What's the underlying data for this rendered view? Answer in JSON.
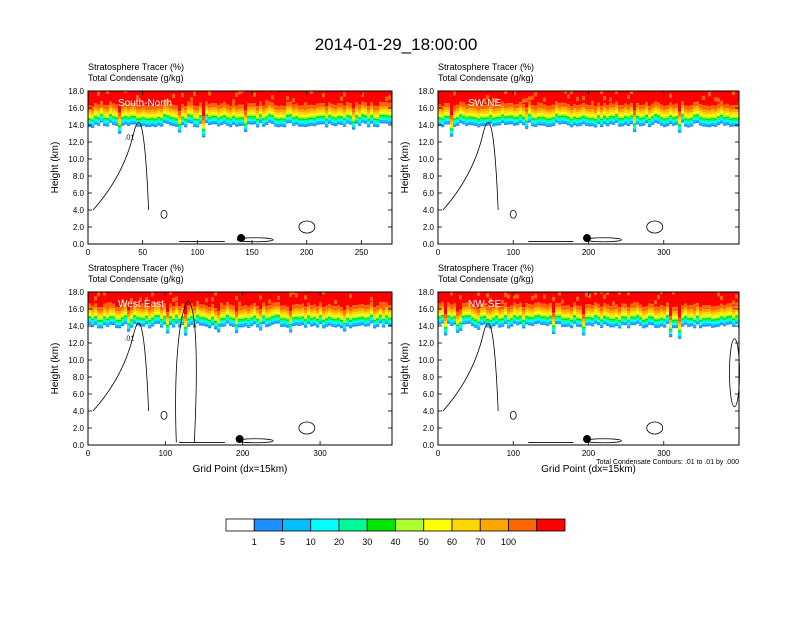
{
  "title": "2014-01-29_18:00:00",
  "chart_data": {
    "type": "heatmap",
    "panel_title_1": "Stratosphere Tracer   (%)",
    "panel_title_2": "Total Condensate   (g/kg)",
    "ylabel": "Height (km)",
    "xlabel": "Grid Point (dx=15km)",
    "contour_note": "Total Condensate Contours: .01 to .01 by .000",
    "y_ticks": [
      "0.0",
      "2.0",
      "4.0",
      "6.0",
      "8.0",
      "10.0",
      "12.0",
      "14.0",
      "16.0",
      "18.0"
    ],
    "ylim": [
      0,
      18
    ],
    "panels": [
      {
        "label": "South-North",
        "xlim": [
          0,
          278
        ],
        "x_ticks": [
          0,
          50,
          100,
          150,
          200,
          250
        ],
        "marker_x": 140,
        "contour_label": ".01"
      },
      {
        "label": "SW-NE",
        "xlim": [
          0,
          400
        ],
        "x_ticks": [
          0,
          100,
          200,
          300
        ],
        "marker_x": 198,
        "contour_label": ""
      },
      {
        "label": "West-East",
        "xlim": [
          0,
          393
        ],
        "x_ticks": [
          0,
          100,
          200,
          300
        ],
        "marker_x": 196,
        "contour_label": ".01"
      },
      {
        "label": "NW-SE",
        "xlim": [
          0,
          400
        ],
        "x_ticks": [
          0,
          100,
          200,
          300
        ],
        "marker_x": 198,
        "contour_label": ""
      }
    ],
    "legend": {
      "labels": [
        "1",
        "5",
        "10",
        "20",
        "30",
        "40",
        "50",
        "60",
        "70",
        "100"
      ],
      "colors": [
        "#ffffff",
        "#1e90ff",
        "#00bfff",
        "#00ffff",
        "#00fa9a",
        "#00e600",
        "#adff2f",
        "#ffff00",
        "#ffd700",
        "#ffa500",
        "#ff6600",
        "#ff0000"
      ]
    }
  }
}
